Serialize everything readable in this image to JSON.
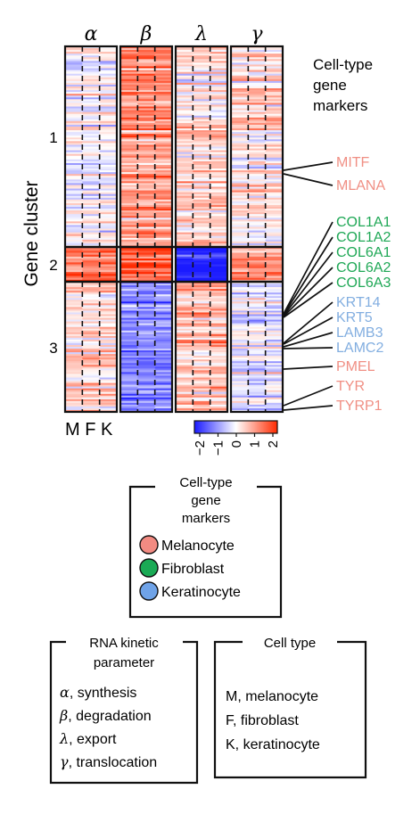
{
  "chart_data": {
    "type": "heatmap",
    "panels": [
      {
        "name": "α",
        "samples": [
          "M",
          "F",
          "K"
        ]
      },
      {
        "name": "β",
        "samples": [
          "M",
          "F",
          "K"
        ]
      },
      {
        "name": "λ",
        "samples": [
          "M",
          "F",
          "K"
        ]
      },
      {
        "name": "γ",
        "samples": [
          "M",
          "F",
          "K"
        ]
      }
    ],
    "ylabel": "Gene cluster",
    "xlabel": "M F K",
    "clusters": [
      {
        "label": "1",
        "rows": 110,
        "mean": [
          0.0,
          0.9,
          0.3,
          0.2
        ]
      },
      {
        "label": "2",
        "rows": 18,
        "mean": [
          1.2,
          1.5,
          -1.8,
          1.0
        ]
      },
      {
        "label": "3",
        "rows": 72,
        "mean": [
          0.4,
          -1.0,
          0.5,
          -0.2
        ]
      }
    ],
    "colorbar": {
      "ticks": [
        "−2",
        "−1",
        "0",
        "1",
        "2"
      ],
      "range": [
        -2,
        2
      ],
      "colors": [
        "#1a1aff",
        "#ffffff",
        "#ff2a00"
      ]
    },
    "marker_title": "Cell-type gene markers",
    "markers": [
      {
        "gene": "MITF",
        "type": "Melanocyte"
      },
      {
        "gene": "MLANA",
        "type": "Melanocyte"
      },
      {
        "gene": "COL1A1",
        "type": "Fibroblast"
      },
      {
        "gene": "COL1A2",
        "type": "Fibroblast"
      },
      {
        "gene": "COL6A1",
        "type": "Fibroblast"
      },
      {
        "gene": "COL6A2",
        "type": "Fibroblast"
      },
      {
        "gene": "COL6A3",
        "type": "Fibroblast"
      },
      {
        "gene": "KRT14",
        "type": "Keratinocyte"
      },
      {
        "gene": "KRT5",
        "type": "Keratinocyte"
      },
      {
        "gene": "LAMB3",
        "type": "Keratinocyte"
      },
      {
        "gene": "LAMC2",
        "type": "Keratinocyte"
      },
      {
        "gene": "PMEL",
        "type": "Melanocyte"
      },
      {
        "gene": "TYR",
        "type": "Melanocyte"
      },
      {
        "gene": "TYRP1",
        "type": "Melanocyte"
      }
    ],
    "type_colors": {
      "Melanocyte": "#f08f84",
      "Fibroblast": "#1fa856",
      "Keratinocyte": "#82aee0"
    },
    "legend_marker": {
      "title": "Cell-type gene markers",
      "entries": [
        {
          "label": "Melanocyte",
          "color": "#f28b82"
        },
        {
          "label": "Fibroblast",
          "color": "#1aaa55"
        },
        {
          "label": "Keratinocyte",
          "color": "#6fa3e8"
        }
      ]
    },
    "legend_kinetic": {
      "title": "RNA kinetic parameter",
      "entries": [
        {
          "symbol": "α",
          "text": ", synthesis"
        },
        {
          "symbol": "β",
          "text": ", degradation"
        },
        {
          "symbol": "λ",
          "text": ", export"
        },
        {
          "symbol": "γ",
          "text": ", translocation"
        }
      ]
    },
    "legend_celltype": {
      "title": "Cell type",
      "entries": [
        "M, melanocyte",
        "F, fibroblast",
        "K, keratinocyte"
      ]
    }
  }
}
